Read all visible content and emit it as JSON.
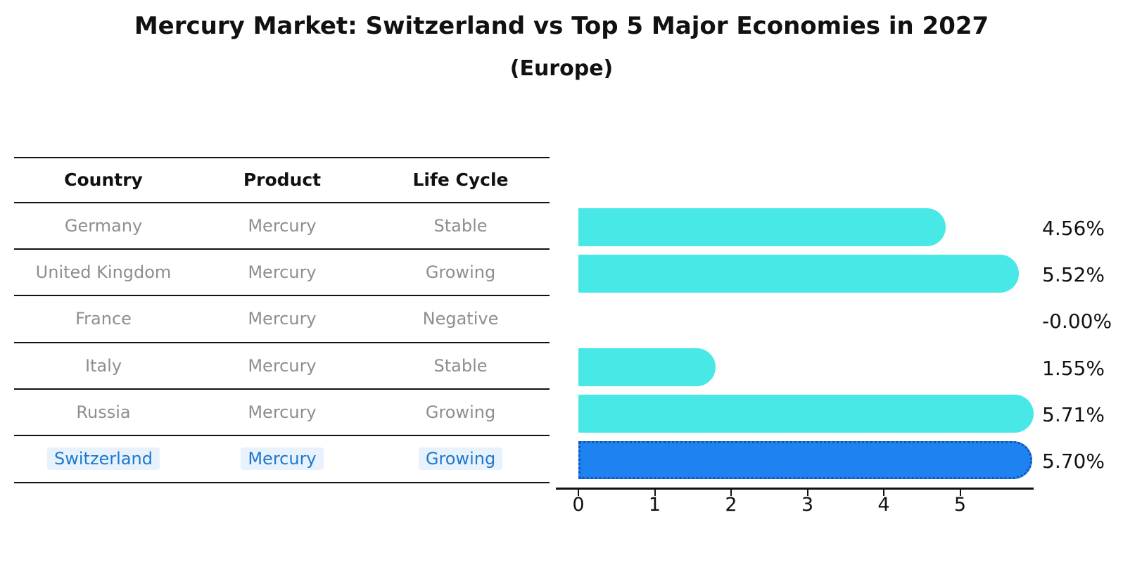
{
  "title": "Mercury Market: Switzerland vs Top 5 Major Economies in 2027",
  "subtitle": "(Europe)",
  "table": {
    "headers": [
      "Country",
      "Product",
      "Life Cycle"
    ],
    "rows": [
      {
        "country": "Germany",
        "product": "Mercury",
        "life_cycle": "Stable",
        "highlight": false
      },
      {
        "country": "United Kingdom",
        "product": "Mercury",
        "life_cycle": "Growing",
        "highlight": false
      },
      {
        "country": "France",
        "product": "Mercury",
        "life_cycle": "Negative",
        "highlight": false
      },
      {
        "country": "Italy",
        "product": "Mercury",
        "life_cycle": "Stable",
        "highlight": false
      },
      {
        "country": "Russia",
        "product": "Mercury",
        "life_cycle": "Growing",
        "highlight": false
      },
      {
        "country": "Switzerland",
        "product": "Mercury",
        "life_cycle": "Growing",
        "highlight": true
      }
    ]
  },
  "chart_data": {
    "type": "bar",
    "orientation": "horizontal",
    "title": "Mercury Market: Switzerland vs Top 5 Major Economies in 2027",
    "subtitle": "(Europe)",
    "categories": [
      "Germany",
      "United Kingdom",
      "France",
      "Italy",
      "Russia",
      "Switzerland"
    ],
    "values": [
      4.56,
      5.52,
      -0.0,
      1.55,
      5.71,
      5.7
    ],
    "value_labels": [
      "4.56%",
      "5.52%",
      "-0.00%",
      "1.55%",
      "5.71%",
      "5.70%"
    ],
    "highlighted_category": "Switzerland",
    "x_ticks": [
      "0",
      "1",
      "2",
      "3",
      "4",
      "5"
    ],
    "xlim": [
      -0.3,
      6.0
    ],
    "xlabel": "",
    "ylabel": "",
    "grid": false,
    "legend": false,
    "bar_color": "#47E8E5",
    "highlight_bar_color": "#1E82F0",
    "highlight_border_color": "#1254B8",
    "text_color": "#111111",
    "muted_text_color": "#8E8E8E",
    "highlight_text_color": "#1E78CC"
  }
}
